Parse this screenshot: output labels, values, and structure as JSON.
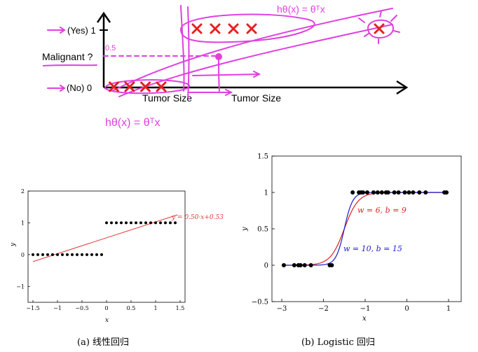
{
  "chart_data": [
    {
      "type": "scatter",
      "name": "hand-annotated tumor classification sketch",
      "xlabel": "Tumor Size",
      "xlabel_duplicate": "Tumor Size",
      "ytick_labels": [
        "(Yes) 1",
        "(No) 0"
      ],
      "yquestion": "Malignant ?",
      "threshold_label": "0.5",
      "hyp_top": "hθ(x) = θᵀx",
      "hyp_bottom": "hθ(x) = θᵀx",
      "marker": "×",
      "points_no": [
        1,
        2,
        3,
        4
      ],
      "points_yes": [
        5,
        6,
        7,
        8,
        11
      ]
    },
    {
      "type": "scatter",
      "name": "linear regression fit",
      "caption": "(a) 线性回归",
      "xlabel": "x",
      "ylabel": "y",
      "xlim": [
        -1.6,
        1.6
      ],
      "ylim": [
        -1.5,
        2.0
      ],
      "xticks": [
        -1.5,
        -1,
        -0.5,
        0,
        0.5,
        1,
        1.5
      ],
      "xtick_labels": [
        "−1.5",
        "−1",
        "−0.5",
        "0",
        "0.5",
        "1",
        "1.5"
      ],
      "yticks": [
        -1,
        0,
        1,
        2
      ],
      "ytick_labels": [
        "−1",
        "0",
        "1",
        "2"
      ],
      "points_y0": [
        -1.5,
        -1.4,
        -1.3,
        -1.2,
        -1.1,
        -1.0,
        -0.9,
        -0.8,
        -0.7,
        -0.6,
        -0.5,
        -0.4,
        -0.3,
        -0.2,
        -0.1
      ],
      "points_y1": [
        0.0,
        0.1,
        0.2,
        0.3,
        0.4,
        0.5,
        0.6,
        0.7,
        0.8,
        0.9,
        1.0,
        1.1,
        1.2,
        1.3,
        1.4
      ],
      "line": {
        "slope": 0.5,
        "intercept": 0.53,
        "x_range": [
          -1.5,
          1.45
        ],
        "color": "#e03a3a"
      },
      "line_label": "y = 0.50·x+0.53"
    },
    {
      "type": "line",
      "name": "logistic regression fit",
      "caption": "(b) Logistic 回归",
      "xlabel": "x",
      "ylabel": "y",
      "xlim": [
        -3.0,
        1.0
      ],
      "ylim": [
        -0.5,
        1.5
      ],
      "xticks": [
        -3,
        -2,
        -1,
        0,
        1
      ],
      "xtick_labels": [
        "−3",
        "−2",
        "−1",
        "0",
        "1"
      ],
      "yticks": [
        -0.5,
        0,
        0.5,
        1,
        1.5
      ],
      "ytick_labels": [
        "−0.5",
        "0",
        "0.5",
        "1",
        "1.5"
      ],
      "points_y0": [
        -2.95,
        -2.7,
        -2.6,
        -2.55,
        -2.45,
        -2.3,
        -1.85,
        -1.8
      ],
      "points_y1": [
        -1.3,
        -1.15,
        -1.1,
        -1.05,
        -0.95,
        -0.8,
        -0.7,
        -0.6,
        -0.5,
        -0.45,
        -0.3,
        -0.2,
        -0.05,
        0.05,
        0.15,
        0.3,
        0.45,
        0.9,
        0.95
      ],
      "series": [
        {
          "name": "w = 6, b = 9",
          "w": 6,
          "b": 9,
          "color": "#e02020"
        },
        {
          "name": "w = 10, b = 15",
          "w": 10,
          "b": 15,
          "color": "#1a1ad0"
        }
      ]
    }
  ]
}
